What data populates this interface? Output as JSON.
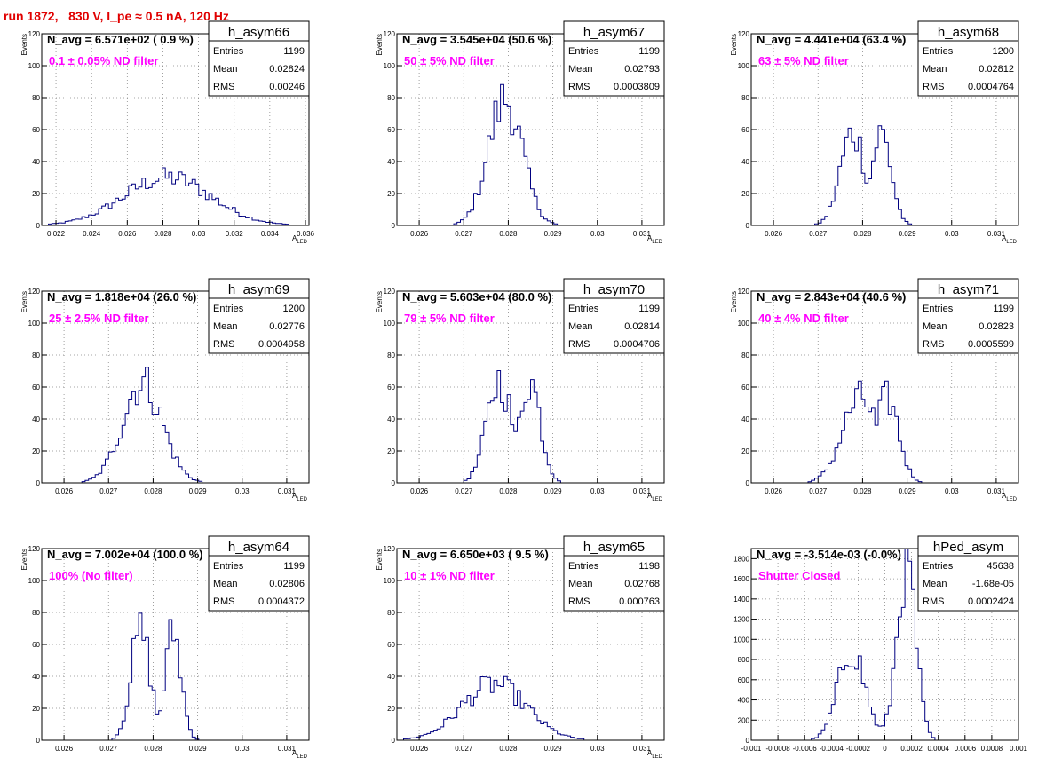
{
  "page_title": "run 1872,   830 V, I_pe ≈ 0.5 nA, 120 Hz",
  "colors": {
    "title": "#e00000",
    "annotation": "#ff00ff",
    "histogram": "#000080",
    "grid": "#888888"
  },
  "stats_labels": {
    "entries": "Entries",
    "mean": "Mean",
    "rms": "RMS"
  },
  "ylabel": "Events",
  "xlabel_main": "A",
  "xlabel_sub": "LED",
  "chart_data": [
    {
      "type": "histogram",
      "name": "h_asym66",
      "header": "N_avg = 6.571e+02 ( 0.9 %)",
      "annotation": "0.1 ± 0.05% ND filter",
      "stats": {
        "entries": "1199",
        "mean": "0.02824",
        "rms": "0.00246"
      },
      "xlim": [
        0.0212,
        0.0362
      ],
      "ylim": [
        0,
        120
      ],
      "xticks": [
        0.022,
        0.024,
        0.026,
        0.028,
        0.03,
        0.032,
        0.034,
        0.036
      ],
      "xtick_labels": [
        "0.022",
        "0.024",
        "0.026",
        "0.028",
        "0.03",
        "0.032",
        "0.034",
        "0.036"
      ],
      "yticks": [
        0,
        20,
        40,
        60,
        80,
        100,
        120
      ],
      "ytick_labels": [
        "0",
        "20",
        "40",
        "60",
        "80",
        "100",
        "120"
      ],
      "xlabel": "A",
      "xlabel_sub": "LED",
      "ylabel": "Events",
      "grid": true,
      "shape": "single",
      "mean": 0.02824,
      "sigma": 0.00246,
      "peak": 30
    },
    {
      "type": "histogram",
      "name": "h_asym67",
      "header": "N_avg = 3.545e+04 (50.6 %)",
      "annotation": "50 ± 5% ND filter",
      "stats": {
        "entries": "1199",
        "mean": "0.02793",
        "rms": "0.0003809"
      },
      "xlim": [
        0.0255,
        0.0315
      ],
      "ylim": [
        0,
        120
      ],
      "xticks": [
        0.026,
        0.027,
        0.028,
        0.029,
        0.03,
        0.031
      ],
      "xtick_labels": [
        "0.026",
        "0.027",
        "0.028",
        "0.029",
        "0.03",
        "0.031"
      ],
      "yticks": [
        0,
        20,
        40,
        60,
        80,
        100,
        120
      ],
      "ytick_labels": [
        "0",
        "20",
        "40",
        "60",
        "80",
        "100",
        "120"
      ],
      "xlabel": "A",
      "xlabel_sub": "LED",
      "ylabel": "Events",
      "grid": true,
      "shape": "single",
      "mean": 0.02793,
      "sigma": 0.00038,
      "peak": 79
    },
    {
      "type": "histogram",
      "name": "h_asym68",
      "header": "N_avg = 4.441e+04 (63.4 %)",
      "annotation": "63 ± 5% ND filter",
      "stats": {
        "entries": "1200",
        "mean": "0.02812",
        "rms": "0.0004764"
      },
      "xlim": [
        0.0255,
        0.0315
      ],
      "ylim": [
        0,
        120
      ],
      "xticks": [
        0.026,
        0.027,
        0.028,
        0.029,
        0.03,
        0.031
      ],
      "xtick_labels": [
        "0.026",
        "0.027",
        "0.028",
        "0.029",
        "0.03",
        "0.031"
      ],
      "yticks": [
        0,
        20,
        40,
        60,
        80,
        100,
        120
      ],
      "ytick_labels": [
        "0",
        "20",
        "40",
        "60",
        "80",
        "100",
        "120"
      ],
      "xlabel": "A",
      "xlabel_sub": "LED",
      "ylabel": "Events",
      "grid": true,
      "shape": "double",
      "m1": 0.02778,
      "s1": 0.00028,
      "m2": 0.02842,
      "s2": 0.00022,
      "peak": 58
    },
    {
      "type": "histogram",
      "name": "h_asym69",
      "header": "N_avg = 1.818e+04 (26.0 %)",
      "annotation": "25 ± 2.5% ND filter",
      "stats": {
        "entries": "1200",
        "mean": "0.02776",
        "rms": "0.0004958"
      },
      "xlim": [
        0.0255,
        0.0315
      ],
      "ylim": [
        0,
        120
      ],
      "xticks": [
        0.026,
        0.027,
        0.028,
        0.029,
        0.03,
        0.031
      ],
      "xtick_labels": [
        "0.026",
        "0.027",
        "0.028",
        "0.029",
        "0.03",
        "0.031"
      ],
      "yticks": [
        0,
        20,
        40,
        60,
        80,
        100,
        120
      ],
      "ytick_labels": [
        "0",
        "20",
        "40",
        "60",
        "80",
        "100",
        "120"
      ],
      "xlabel": "A",
      "xlabel_sub": "LED",
      "ylabel": "Events",
      "grid": true,
      "shape": "single",
      "mean": 0.02776,
      "sigma": 0.00045,
      "peak": 63
    },
    {
      "type": "histogram",
      "name": "h_asym70",
      "header": "N_avg = 5.603e+04 (80.0 %)",
      "annotation": "79 ± 5% ND filter",
      "stats": {
        "entries": "1199",
        "mean": "0.02814",
        "rms": "0.0004706"
      },
      "xlim": [
        0.0255,
        0.0315
      ],
      "ylim": [
        0,
        120
      ],
      "xticks": [
        0.026,
        0.027,
        0.028,
        0.029,
        0.03,
        0.031
      ],
      "xtick_labels": [
        "0.026",
        "0.027",
        "0.028",
        "0.029",
        "0.03",
        "0.031"
      ],
      "yticks": [
        0,
        20,
        40,
        60,
        80,
        100,
        120
      ],
      "ytick_labels": [
        "0",
        "20",
        "40",
        "60",
        "80",
        "100",
        "120"
      ],
      "xlabel": "A",
      "xlabel_sub": "LED",
      "ylabel": "Events",
      "grid": true,
      "shape": "double",
      "m1": 0.0278,
      "s1": 0.00028,
      "m2": 0.02848,
      "s2": 0.00024,
      "peak": 64
    },
    {
      "type": "histogram",
      "name": "h_asym71",
      "header": "N_avg = 2.843e+04 (40.6 %)",
      "annotation": "40 ± 4% ND filter",
      "stats": {
        "entries": "1199",
        "mean": "0.02823",
        "rms": "0.0005599"
      },
      "xlim": [
        0.0255,
        0.0315
      ],
      "ylim": [
        0,
        120
      ],
      "xticks": [
        0.026,
        0.027,
        0.028,
        0.029,
        0.03,
        0.031
      ],
      "xtick_labels": [
        "0.026",
        "0.027",
        "0.028",
        "0.029",
        "0.03",
        "0.031"
      ],
      "yticks": [
        0,
        20,
        40,
        60,
        80,
        100,
        120
      ],
      "ytick_labels": [
        "0",
        "20",
        "40",
        "60",
        "80",
        "100",
        "120"
      ],
      "xlabel": "A",
      "xlabel_sub": "LED",
      "ylabel": "Events",
      "grid": true,
      "shape": "double",
      "m1": 0.02795,
      "s1": 0.0004,
      "m2": 0.02855,
      "s2": 0.00026,
      "peak": 53
    },
    {
      "type": "histogram",
      "name": "h_asym64",
      "header": "N_avg = 7.002e+04 (100.0 %)",
      "annotation": "100% (No filter)",
      "stats": {
        "entries": "1199",
        "mean": "0.02806",
        "rms": "0.0004372"
      },
      "xlim": [
        0.0255,
        0.0315
      ],
      "ylim": [
        0,
        120
      ],
      "xticks": [
        0.026,
        0.027,
        0.028,
        0.029,
        0.03,
        0.031
      ],
      "xtick_labels": [
        "0.026",
        "0.027",
        "0.028",
        "0.029",
        "0.03",
        "0.031"
      ],
      "yticks": [
        0,
        20,
        40,
        60,
        80,
        100,
        120
      ],
      "ytick_labels": [
        "0",
        "20",
        "40",
        "60",
        "80",
        "100",
        "120"
      ],
      "xlabel": "A",
      "xlabel_sub": "LED",
      "ylabel": "Events",
      "grid": true,
      "shape": "double",
      "m1": 0.02772,
      "s1": 0.00022,
      "m2": 0.02845,
      "s2": 0.00018,
      "peak": 68
    },
    {
      "type": "histogram",
      "name": "h_asym65",
      "header": "N_avg = 6.650e+03 ( 9.5 %)",
      "annotation": "10 ± 1% ND filter",
      "stats": {
        "entries": "1198",
        "mean": "0.02768",
        "rms": "0.000763"
      },
      "xlim": [
        0.0255,
        0.0315
      ],
      "ylim": [
        0,
        120
      ],
      "xticks": [
        0.026,
        0.027,
        0.028,
        0.029,
        0.03,
        0.031
      ],
      "xtick_labels": [
        "0.026",
        "0.027",
        "0.028",
        "0.029",
        "0.03",
        "0.031"
      ],
      "yticks": [
        0,
        20,
        40,
        60,
        80,
        100,
        120
      ],
      "ytick_labels": [
        "0",
        "20",
        "40",
        "60",
        "80",
        "100",
        "120"
      ],
      "xlabel": "A",
      "xlabel_sub": "LED",
      "ylabel": "Events",
      "grid": true,
      "shape": "single",
      "mean": 0.02768,
      "sigma": 0.00072,
      "peak": 35
    },
    {
      "type": "histogram",
      "name": "hPed_asym",
      "header": "N_avg = -3.514e-03 (-0.0%)",
      "annotation": "Shutter Closed",
      "stats": {
        "entries": "45638",
        "mean": "-1.68e-05",
        "rms": "0.0002424"
      },
      "xlim": [
        -0.001,
        0.001
      ],
      "ylim": [
        0,
        1900
      ],
      "xticks": [
        -0.001,
        -0.0008,
        -0.0006,
        -0.0004,
        -0.0002,
        0,
        0.0002,
        0.0004,
        0.0006,
        0.0008,
        0.001
      ],
      "xtick_labels": [
        "-0.001",
        "-0.0008",
        "-0.0006",
        "-0.0004",
        "-0.0002",
        "0",
        "0.0002",
        "0.0004",
        "0.0006",
        "0.0008",
        "0.001"
      ],
      "yticks": [
        0,
        200,
        400,
        600,
        800,
        1000,
        1200,
        1400,
        1600,
        1800
      ],
      "ytick_labels": [
        "0",
        "200",
        "400",
        "600",
        "800",
        "1000",
        "1200",
        "1400",
        "1600",
        "1800"
      ],
      "xlabel": "",
      "xlabel_sub": "",
      "ylabel": "",
      "grid": true,
      "shape": "ped",
      "m1": -0.00025,
      "s1": 0.0001,
      "a1": 900,
      "m2": 0.00016,
      "s2": 7e-05,
      "a2": 1750
    }
  ]
}
